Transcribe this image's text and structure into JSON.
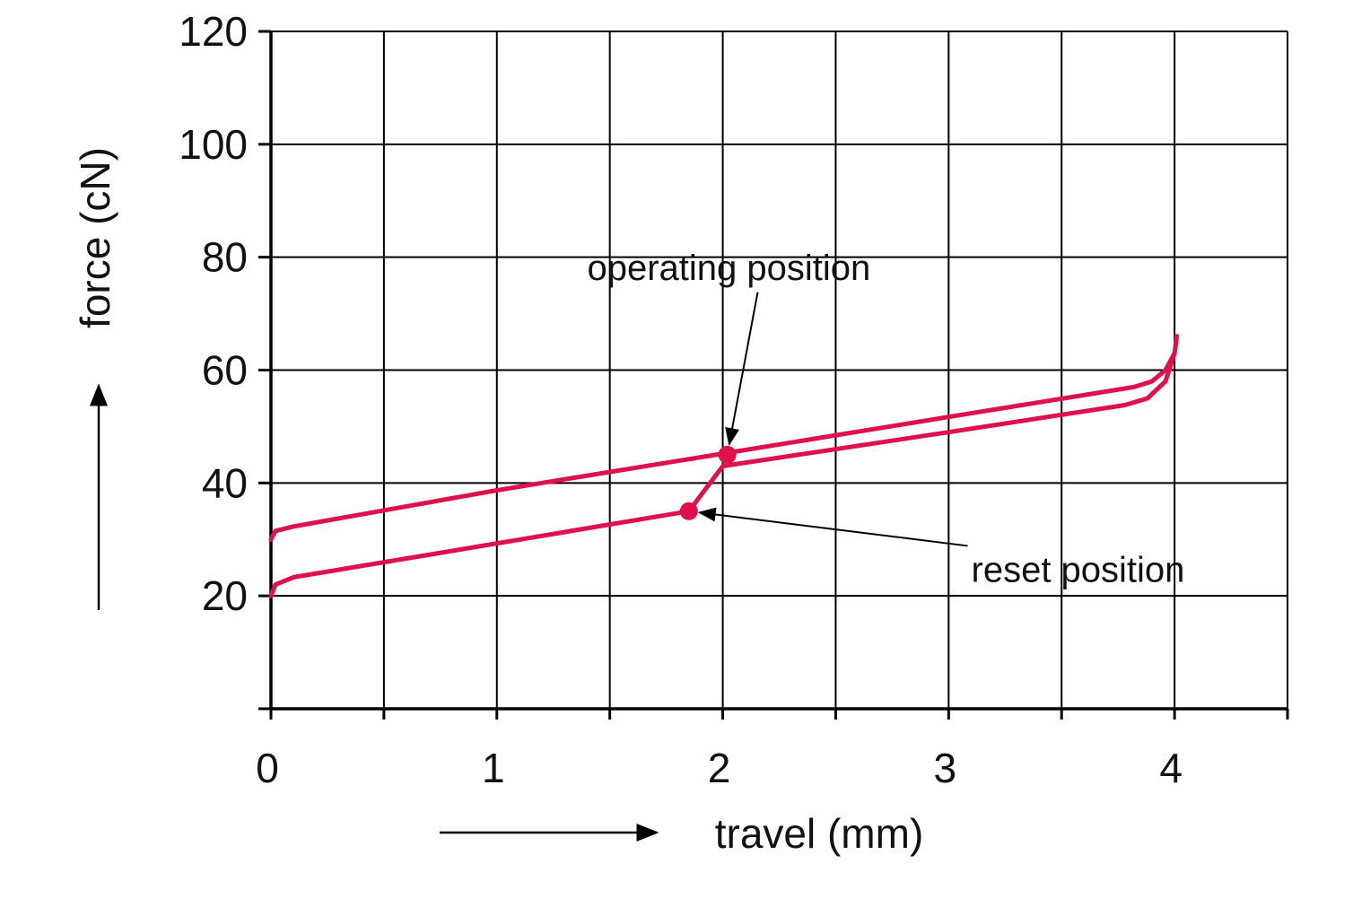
{
  "chart_data": {
    "type": "line",
    "title": "",
    "xlabel": "travel (mm)",
    "ylabel": "force (cN)",
    "xlim": [
      0,
      4.5
    ],
    "ylim": [
      0,
      120
    ],
    "x_ticks": [
      {
        "value": 0,
        "label": "0"
      },
      {
        "value": 1,
        "label": "1"
      },
      {
        "value": 2,
        "label": "2"
      },
      {
        "value": 3,
        "label": "3"
      },
      {
        "value": 4,
        "label": "4"
      }
    ],
    "y_ticks": [
      {
        "value": 20,
        "label": "20"
      },
      {
        "value": 40,
        "label": "40"
      },
      {
        "value": 60,
        "label": "60"
      },
      {
        "value": 80,
        "label": "80"
      },
      {
        "value": 100,
        "label": "100"
      },
      {
        "value": 120,
        "label": "120"
      }
    ],
    "grid": {
      "x_step": 0.5,
      "y_step": 20
    },
    "line_color": "#e0104a",
    "series": [
      {
        "points": [
          [
            0,
            30
          ],
          [
            0.02,
            31.5
          ],
          [
            0.1,
            32.3
          ],
          [
            1,
            38.7
          ],
          [
            2,
            45.2
          ],
          [
            3,
            51.7
          ],
          [
            3.82,
            57
          ],
          [
            3.9,
            58
          ],
          [
            3.96,
            60
          ],
          [
            4,
            63
          ],
          [
            4.01,
            66
          ]
        ]
      },
      {
        "points": [
          [
            0,
            20
          ],
          [
            0.02,
            22
          ],
          [
            0.1,
            23.3
          ],
          [
            1,
            29.3
          ],
          [
            1.85,
            35
          ],
          [
            2,
            43
          ],
          [
            3,
            49
          ],
          [
            3.78,
            53.8
          ],
          [
            3.88,
            55
          ],
          [
            3.96,
            58
          ],
          [
            4,
            63
          ]
        ]
      }
    ],
    "markers": [
      {
        "x": 2.02,
        "y": 45,
        "label": "operating position"
      },
      {
        "x": 1.85,
        "y": 35,
        "label": "reset position"
      }
    ],
    "annotations": [
      {
        "text": "operating position",
        "x": 1.4,
        "y": 76,
        "target": [
          2.02,
          45
        ]
      },
      {
        "text": "reset position",
        "x": 3.1,
        "y": 22.5,
        "target": [
          1.85,
          35
        ]
      }
    ]
  }
}
